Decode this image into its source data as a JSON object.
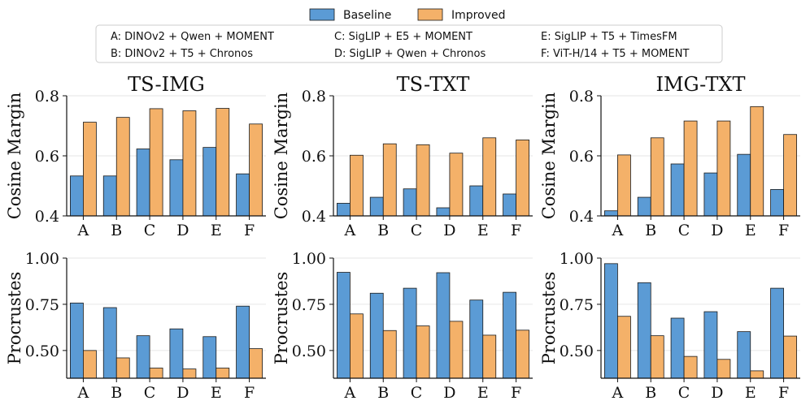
{
  "legend": {
    "series": [
      {
        "name": "Baseline",
        "color": "#5b9bd5"
      },
      {
        "name": "Improved",
        "color": "#f4b169"
      }
    ],
    "models": [
      "A: DINOv2 + Qwen + MOMENT",
      "B: DINOv2 + T5 + Chronos",
      "C: SigLIP + E5 + MOMENT",
      "D: SigLIP + Qwen + Chronos",
      "E: SigLIP + T5 + TimesFM",
      "F: ViT-H/14 + T5 + MOMENT"
    ]
  },
  "colors": {
    "baseline": "#5b9bd5",
    "improved": "#f4b169",
    "edge": "#1a1a1a"
  },
  "chart_data": [
    {
      "type": "bar",
      "title": "TS-IMG",
      "ylabel": "Cosine Margin",
      "categories": [
        "A",
        "B",
        "C",
        "D",
        "E",
        "F"
      ],
      "ylim": [
        0.4,
        0.8
      ],
      "yticks": [
        0.4,
        0.6,
        0.8
      ],
      "yticklabels": [
        "0.4",
        "0.6",
        "0.8"
      ],
      "series": [
        {
          "name": "Baseline",
          "values": [
            0.533,
            0.533,
            0.623,
            0.587,
            0.628,
            0.54
          ]
        },
        {
          "name": "Improved",
          "values": [
            0.712,
            0.728,
            0.757,
            0.75,
            0.758,
            0.706
          ]
        }
      ]
    },
    {
      "type": "bar",
      "title": "TS-TXT",
      "ylabel": "Cosine Margin",
      "categories": [
        "A",
        "B",
        "C",
        "D",
        "E",
        "F"
      ],
      "ylim": [
        0.4,
        0.8
      ],
      "yticks": [
        0.4,
        0.6,
        0.8
      ],
      "yticklabels": [
        "0.4",
        "0.6",
        "0.8"
      ],
      "series": [
        {
          "name": "Baseline",
          "values": [
            0.442,
            0.462,
            0.49,
            0.427,
            0.5,
            0.473
          ]
        },
        {
          "name": "Improved",
          "values": [
            0.602,
            0.64,
            0.637,
            0.609,
            0.66,
            0.653
          ]
        }
      ]
    },
    {
      "type": "bar",
      "title": "IMG-TXT",
      "ylabel": "Cosine Margin",
      "categories": [
        "A",
        "B",
        "C",
        "D",
        "E",
        "F"
      ],
      "ylim": [
        0.4,
        0.8
      ],
      "yticks": [
        0.4,
        0.6,
        0.8
      ],
      "yticklabels": [
        "0.4",
        "0.6",
        "0.8"
      ],
      "series": [
        {
          "name": "Baseline",
          "values": [
            0.417,
            0.462,
            0.573,
            0.543,
            0.605,
            0.488
          ]
        },
        {
          "name": "Improved",
          "values": [
            0.603,
            0.66,
            0.716,
            0.716,
            0.764,
            0.671
          ]
        }
      ]
    },
    {
      "type": "bar",
      "title": "",
      "ylabel": "Procrustes",
      "categories": [
        "A",
        "B",
        "C",
        "D",
        "E",
        "F"
      ],
      "ylim": [
        0.35,
        1.0
      ],
      "yticks": [
        0.5,
        0.75,
        1.0
      ],
      "yticklabels": [
        "0.50",
        "0.75",
        "1.00"
      ],
      "series": [
        {
          "name": "Baseline",
          "values": [
            0.757,
            0.732,
            0.58,
            0.617,
            0.575,
            0.74
          ]
        },
        {
          "name": "Improved",
          "values": [
            0.5,
            0.46,
            0.405,
            0.4,
            0.405,
            0.51
          ]
        }
      ]
    },
    {
      "type": "bar",
      "title": "",
      "ylabel": "Procrustes",
      "categories": [
        "A",
        "B",
        "C",
        "D",
        "E",
        "F"
      ],
      "ylim": [
        0.35,
        1.0
      ],
      "yticks": [
        0.5,
        0.75,
        1.0
      ],
      "yticklabels": [
        "0.50",
        "0.75",
        "1.00"
      ],
      "series": [
        {
          "name": "Baseline",
          "values": [
            0.923,
            0.81,
            0.837,
            0.921,
            0.773,
            0.815
          ]
        },
        {
          "name": "Improved",
          "values": [
            0.698,
            0.608,
            0.633,
            0.658,
            0.583,
            0.61
          ]
        }
      ]
    },
    {
      "type": "bar",
      "title": "",
      "ylabel": "Procrustes",
      "categories": [
        "A",
        "B",
        "C",
        "D",
        "E",
        "F"
      ],
      "ylim": [
        0.35,
        1.0
      ],
      "yticks": [
        0.5,
        0.75,
        1.0
      ],
      "yticklabels": [
        "0.50",
        "0.75",
        "1.00"
      ],
      "series": [
        {
          "name": "Baseline",
          "values": [
            0.97,
            0.867,
            0.675,
            0.71,
            0.602,
            0.837
          ]
        },
        {
          "name": "Improved",
          "values": [
            0.685,
            0.58,
            0.468,
            0.452,
            0.39,
            0.578
          ]
        }
      ]
    }
  ]
}
